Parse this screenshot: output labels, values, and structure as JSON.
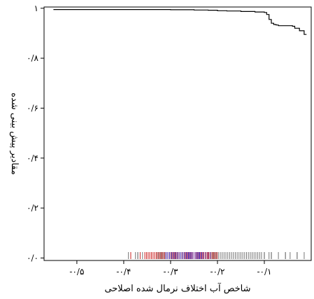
{
  "chart_data": {
    "type": "line",
    "title": "",
    "xlabel": "شاخص آب اختلاف نرمال شده اصلاحی",
    "ylabel": "مقادیر پیش بینی شده",
    "xlim": [
      -0.57,
      0.0
    ],
    "ylim": [
      -0.01,
      1.005
    ],
    "x_ticks": [
      {
        "value": -0.5,
        "label": "-۰/۵"
      },
      {
        "value": -0.4,
        "label": "-۰/۴"
      },
      {
        "value": -0.3,
        "label": "-۰/۳"
      },
      {
        "value": -0.2,
        "label": "-۰/۲"
      },
      {
        "value": -0.1,
        "label": "-۰/۱"
      }
    ],
    "y_ticks": [
      {
        "value": 0.0,
        "label": "۰/۰"
      },
      {
        "value": 0.2,
        "label": "۰/۲"
      },
      {
        "value": 0.4,
        "label": "۰/۴"
      },
      {
        "value": 0.6,
        "label": "۰/۶"
      },
      {
        "value": 0.8,
        "label": "۰/۸"
      },
      {
        "value": 1.0,
        "label": "۱"
      }
    ],
    "grid": false,
    "series": [
      {
        "color": "#000000",
        "x": [
          -0.55,
          -0.4,
          -0.3,
          -0.25,
          -0.22,
          -0.2,
          -0.18,
          -0.15,
          -0.12,
          -0.1,
          -0.095,
          -0.09,
          -0.085,
          -0.08,
          -0.075,
          -0.07,
          -0.06,
          -0.05,
          -0.04,
          -0.035,
          -0.03,
          -0.025,
          -0.02,
          -0.015,
          -0.01
        ],
        "y": [
          0.995,
          0.995,
          0.994,
          0.993,
          0.992,
          0.99,
          0.989,
          0.987,
          0.985,
          0.983,
          0.975,
          0.955,
          0.94,
          0.935,
          0.933,
          0.93,
          0.93,
          0.93,
          0.928,
          0.92,
          0.92,
          0.91,
          0.91,
          0.895,
          0.895
        ]
      }
    ],
    "rug": {
      "ranges": [
        {
          "from": -0.33,
          "to": -0.105,
          "step": 0.004,
          "color": "#777777"
        },
        {
          "from": -0.355,
          "to": -0.2,
          "step": 0.0035,
          "color": "#cc2222"
        },
        {
          "from": -0.31,
          "to": -0.23,
          "step": 0.004,
          "color": "#3a3acc"
        },
        {
          "from": -0.265,
          "to": -0.215,
          "step": 0.005,
          "color": "#8844aa"
        }
      ],
      "points": [
        {
          "x": -0.39,
          "color": "#777777"
        },
        {
          "x": -0.385,
          "color": "#cc2222"
        },
        {
          "x": -0.375,
          "color": "#777777"
        },
        {
          "x": -0.37,
          "color": "#555555"
        },
        {
          "x": -0.365,
          "color": "#cc2222"
        },
        {
          "x": -0.36,
          "color": "#777777"
        },
        {
          "x": -0.1,
          "color": "#555555"
        },
        {
          "x": -0.09,
          "color": "#777777"
        },
        {
          "x": -0.085,
          "color": "#555555"
        },
        {
          "x": -0.07,
          "color": "#777777"
        },
        {
          "x": -0.055,
          "color": "#555555"
        },
        {
          "x": -0.045,
          "color": "#777777"
        },
        {
          "x": -0.03,
          "color": "#555555"
        },
        {
          "x": -0.015,
          "color": "#777777"
        }
      ]
    }
  }
}
